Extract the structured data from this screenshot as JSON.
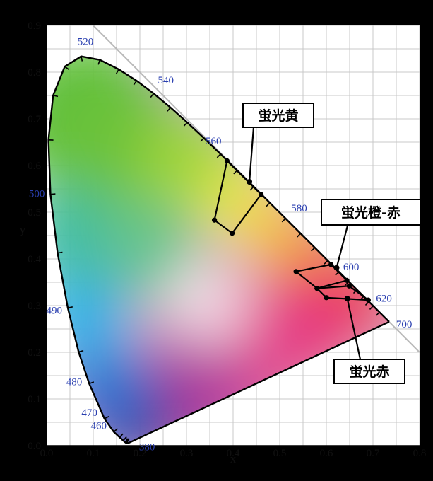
{
  "chart_data": {
    "type": "scatter",
    "title": "",
    "xlabel": "x",
    "ylabel": "y",
    "xlim": [
      0.0,
      0.8
    ],
    "ylim": [
      0.0,
      0.9
    ],
    "x_ticks": [
      "0.0",
      "0.1",
      "0.2",
      "0.3",
      "0.4",
      "0.5",
      "0.6",
      "0.7",
      "0.8"
    ],
    "y_ticks": [
      "0.0",
      "0.1",
      "0.2",
      "0.3",
      "0.4",
      "0.5",
      "0.6",
      "0.7",
      "0.8",
      "0.9"
    ],
    "grid": true,
    "spectral_locus": [
      [
        0.1741,
        0.005
      ],
      [
        0.1738,
        0.0049
      ],
      [
        0.1736,
        0.0049
      ],
      [
        0.1733,
        0.0048
      ],
      [
        0.1726,
        0.0048
      ],
      [
        0.1714,
        0.0051
      ],
      [
        0.1689,
        0.0069
      ],
      [
        0.1644,
        0.0109
      ],
      [
        0.1566,
        0.0177
      ],
      [
        0.144,
        0.0297
      ],
      [
        0.1241,
        0.0578
      ],
      [
        0.0913,
        0.1327
      ],
      [
        0.0687,
        0.2007
      ],
      [
        0.0454,
        0.295
      ],
      [
        0.0235,
        0.4127
      ],
      [
        0.0082,
        0.5384
      ],
      [
        0.0039,
        0.6548
      ],
      [
        0.0139,
        0.7502
      ],
      [
        0.0389,
        0.812
      ],
      [
        0.0743,
        0.8338
      ],
      [
        0.1142,
        0.8262
      ],
      [
        0.1547,
        0.8059
      ],
      [
        0.1929,
        0.7816
      ],
      [
        0.2296,
        0.7543
      ],
      [
        0.2658,
        0.7243
      ],
      [
        0.3016,
        0.6923
      ],
      [
        0.3373,
        0.6589
      ],
      [
        0.3731,
        0.6245
      ],
      [
        0.4087,
        0.5896
      ],
      [
        0.4441,
        0.5547
      ],
      [
        0.4788,
        0.5202
      ],
      [
        0.5125,
        0.4866
      ],
      [
        0.5448,
        0.4544
      ],
      [
        0.5752,
        0.4242
      ],
      [
        0.6029,
        0.3965
      ],
      [
        0.627,
        0.3725
      ],
      [
        0.6482,
        0.3514
      ],
      [
        0.6658,
        0.334
      ],
      [
        0.6801,
        0.3197
      ],
      [
        0.6915,
        0.3083
      ],
      [
        0.7006,
        0.2993
      ],
      [
        0.714,
        0.2859
      ],
      [
        0.7347,
        0.2653
      ]
    ],
    "wavelength_labels": [
      {
        "label": "380",
        "x": 0.1741,
        "y": 0.005
      },
      {
        "label": "460",
        "x": 0.144,
        "y": 0.0297
      },
      {
        "label": "470",
        "x": 0.1241,
        "y": 0.0578
      },
      {
        "label": "480",
        "x": 0.0913,
        "y": 0.1327
      },
      {
        "label": "490",
        "x": 0.0454,
        "y": 0.295
      },
      {
        "label": "500",
        "x": 0.0082,
        "y": 0.5384
      },
      {
        "label": "520",
        "x": 0.0743,
        "y": 0.8338
      },
      {
        "label": "540",
        "x": 0.2296,
        "y": 0.7543
      },
      {
        "label": "560",
        "x": 0.3731,
        "y": 0.6245
      },
      {
        "label": "580",
        "x": 0.5125,
        "y": 0.4866
      },
      {
        "label": "600",
        "x": 0.627,
        "y": 0.3725
      },
      {
        "label": "620",
        "x": 0.6915,
        "y": 0.3083
      },
      {
        "label": "700",
        "x": 0.7347,
        "y": 0.2653
      }
    ],
    "series": [
      {
        "name": "蛍光黄",
        "points": [
          [
            0.387,
            0.61
          ],
          [
            0.46,
            0.538
          ],
          [
            0.398,
            0.455
          ],
          [
            0.36,
            0.483
          ]
        ]
      },
      {
        "name": "蛍光橙-赤",
        "points": [
          [
            0.535,
            0.373
          ],
          [
            0.61,
            0.388
          ],
          [
            0.644,
            0.354
          ],
          [
            0.58,
            0.337
          ]
        ]
      },
      {
        "name": "蛍光赤",
        "points": [
          [
            0.58,
            0.337
          ],
          [
            0.649,
            0.342
          ],
          [
            0.69,
            0.312
          ],
          [
            0.6,
            0.317
          ]
        ]
      }
    ],
    "annotations": [
      {
        "text": "蛍光黄",
        "target": [
          0.435,
          0.565
        ]
      },
      {
        "text": "蛍光橙-赤",
        "target": [
          0.622,
          0.381
        ]
      },
      {
        "text": "蛍光赤",
        "target": [
          0.645,
          0.315
        ]
      }
    ],
    "colors": {
      "background": "#000000",
      "plot_bg": "#ffffff",
      "grid": "#c8c8c8",
      "wavelength_label": "#2a3fb0",
      "locus": "#000000",
      "annotation_box": "#ffffff"
    }
  }
}
